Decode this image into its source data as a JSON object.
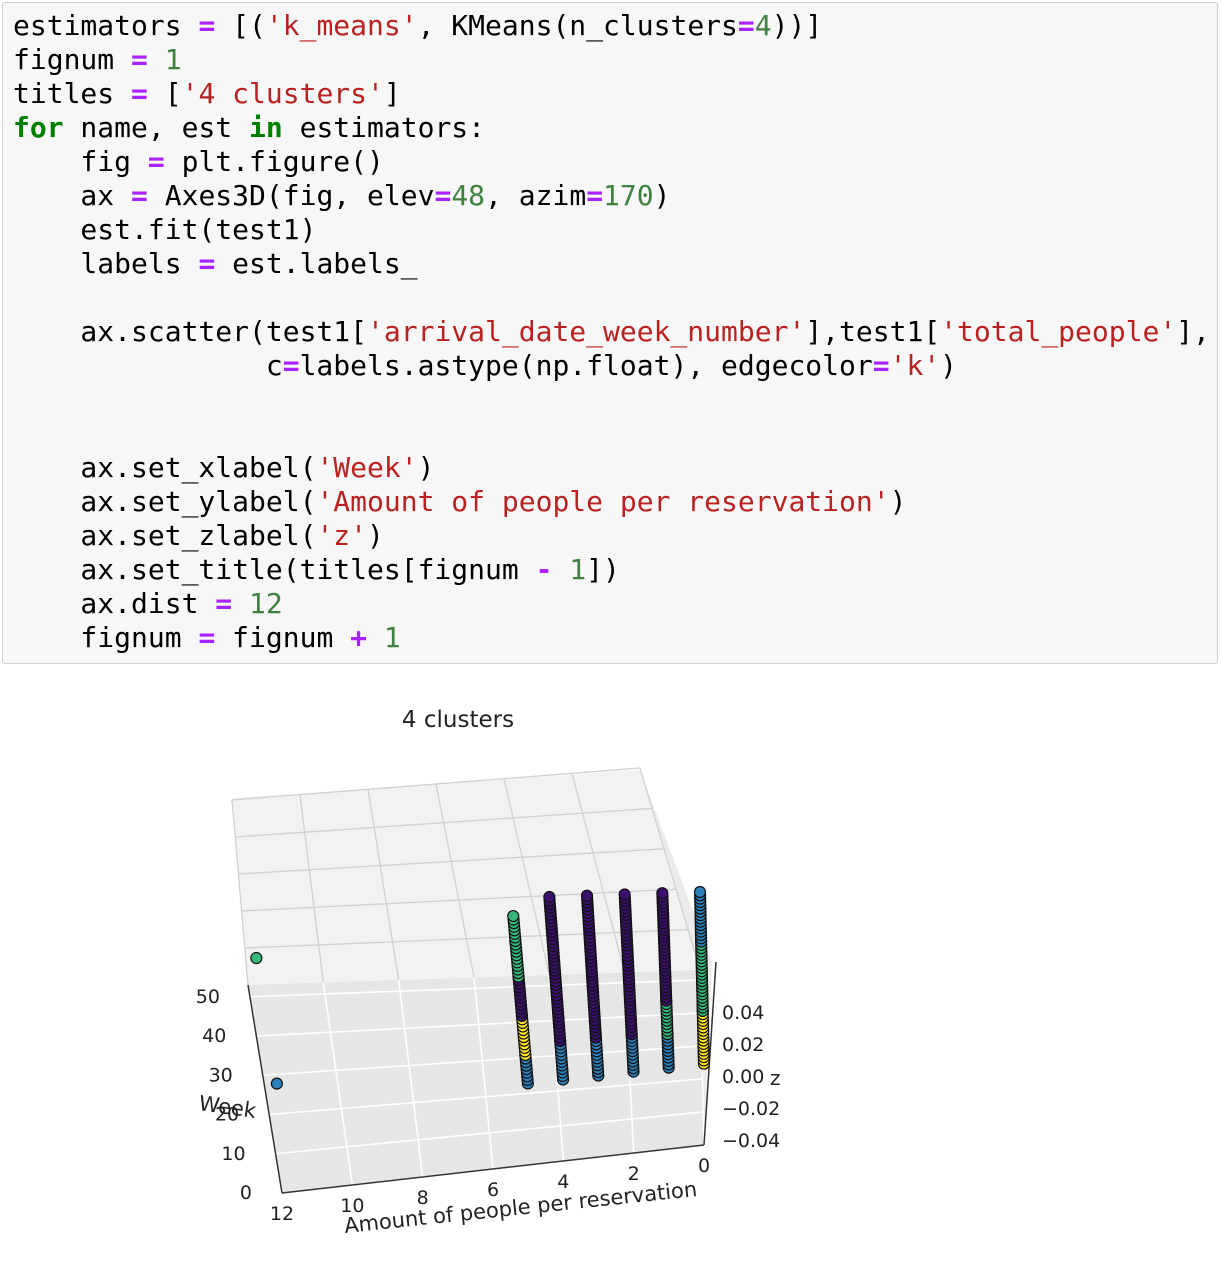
{
  "code_cell": {
    "lines": [
      [
        [
          "plain",
          "estimators "
        ],
        [
          "op",
          "="
        ],
        [
          "plain",
          " [("
        ],
        [
          "str",
          "'k_means'"
        ],
        [
          "plain",
          ", KMeans(n_clusters"
        ],
        [
          "op",
          "="
        ],
        [
          "num",
          "4"
        ],
        [
          "plain",
          "))]"
        ]
      ],
      [
        [
          "plain",
          "fignum "
        ],
        [
          "op",
          "="
        ],
        [
          "plain",
          " "
        ],
        [
          "num",
          "1"
        ]
      ],
      [
        [
          "plain",
          "titles "
        ],
        [
          "op",
          "="
        ],
        [
          "plain",
          " ["
        ],
        [
          "str",
          "'4 clusters'"
        ],
        [
          "plain",
          "]"
        ]
      ],
      [
        [
          "kw",
          "for"
        ],
        [
          "plain",
          " name, est "
        ],
        [
          "kw",
          "in"
        ],
        [
          "plain",
          " estimators:"
        ]
      ],
      [
        [
          "plain",
          "    fig "
        ],
        [
          "op",
          "="
        ],
        [
          "plain",
          " plt.figure()"
        ]
      ],
      [
        [
          "plain",
          "    ax "
        ],
        [
          "op",
          "="
        ],
        [
          "plain",
          " Axes3D(fig, elev"
        ],
        [
          "op",
          "="
        ],
        [
          "num",
          "48"
        ],
        [
          "plain",
          ", azim"
        ],
        [
          "op",
          "="
        ],
        [
          "num",
          "170"
        ],
        [
          "plain",
          ")"
        ]
      ],
      [
        [
          "plain",
          "    est.fit(test1)"
        ]
      ],
      [
        [
          "plain",
          "    labels "
        ],
        [
          "op",
          "="
        ],
        [
          "plain",
          " est.labels_"
        ]
      ],
      [],
      [
        [
          "plain",
          "    ax.scatter(test1["
        ],
        [
          "str",
          "'arrival_date_week_number'"
        ],
        [
          "plain",
          "],test1["
        ],
        [
          "str",
          "'total_people'"
        ],
        [
          "plain",
          "],"
        ]
      ],
      [
        [
          "plain",
          "               c"
        ],
        [
          "op",
          "="
        ],
        [
          "plain",
          "labels.astype(np.float), edgecolor"
        ],
        [
          "op",
          "="
        ],
        [
          "str",
          "'k'"
        ],
        [
          "plain",
          ")"
        ]
      ],
      [],
      [],
      [
        [
          "plain",
          "    ax.set_xlabel("
        ],
        [
          "str",
          "'Week'"
        ],
        [
          "plain",
          ")"
        ]
      ],
      [
        [
          "plain",
          "    ax.set_ylabel("
        ],
        [
          "str",
          "'Amount of people per reservation'"
        ],
        [
          "plain",
          ")"
        ]
      ],
      [
        [
          "plain",
          "    ax.set_zlabel("
        ],
        [
          "str",
          "'z'"
        ],
        [
          "plain",
          ")"
        ]
      ],
      [
        [
          "plain",
          "    ax.set_title(titles[fignum "
        ],
        [
          "op",
          "-"
        ],
        [
          "plain",
          " "
        ],
        [
          "num",
          "1"
        ],
        [
          "plain",
          "])"
        ]
      ],
      [
        [
          "plain",
          "    ax.dist "
        ],
        [
          "op",
          "="
        ],
        [
          "plain",
          " "
        ],
        [
          "num",
          "12"
        ]
      ],
      [
        [
          "plain",
          "    fignum "
        ],
        [
          "op",
          "="
        ],
        [
          "plain",
          " fignum "
        ],
        [
          "op",
          "+"
        ],
        [
          "plain",
          " "
        ],
        [
          "num",
          "1"
        ]
      ]
    ]
  },
  "plot": {
    "title": "4 clusters",
    "xlabel": "Week",
    "ylabel": "Amount of people per reservation",
    "zlabel": "z",
    "week_ticks": [
      "0",
      "10",
      "20",
      "30",
      "40",
      "50"
    ],
    "people_ticks": [
      "12",
      "10",
      "8",
      "6",
      "4",
      "2",
      "0"
    ],
    "z_ticks": [
      "0.04",
      "0.02",
      "0.00",
      "−0.02",
      "−0.04"
    ]
  },
  "chart_data": {
    "type": "scatter",
    "title": "4 clusters",
    "xlabel": "Week",
    "ylabel": "Amount of people per reservation",
    "zlabel": "z",
    "view": {
      "elev": 48,
      "azim": 170
    },
    "x_range": [
      0,
      53
    ],
    "y_range": [
      0,
      12
    ],
    "z_range": [
      -0.04,
      0.04
    ],
    "cluster_colors": [
      "#3b0f6f",
      "#2c7fb8",
      "#35b779",
      "#fde725"
    ],
    "groups": [
      {
        "people": 0,
        "runs": [
          [
            1,
            17,
            3
          ],
          [
            17,
            38,
            2
          ],
          [
            38,
            53,
            1
          ]
        ]
      },
      {
        "people": 1,
        "runs": [
          [
            1,
            11,
            1
          ],
          [
            11,
            21,
            2
          ],
          [
            21,
            53,
            0
          ]
        ]
      },
      {
        "people": 2,
        "runs": [
          [
            1,
            12,
            1
          ],
          [
            12,
            53,
            0
          ]
        ]
      },
      {
        "people": 3,
        "runs": [
          [
            1,
            12,
            1
          ],
          [
            12,
            53,
            0
          ]
        ]
      },
      {
        "people": 4,
        "runs": [
          [
            1,
            12,
            1
          ],
          [
            12,
            53,
            0
          ]
        ]
      },
      {
        "people": 5,
        "runs": [
          [
            1,
            9,
            1
          ],
          [
            9,
            20,
            3
          ],
          [
            20,
            31,
            0
          ],
          [
            31,
            41,
            2
          ],
          [
            41,
            48,
            2
          ]
        ]
      },
      {
        "people": 12,
        "runs": [
          [
            40,
            40,
            2
          ],
          [
            8,
            8,
            1
          ]
        ]
      }
    ]
  }
}
